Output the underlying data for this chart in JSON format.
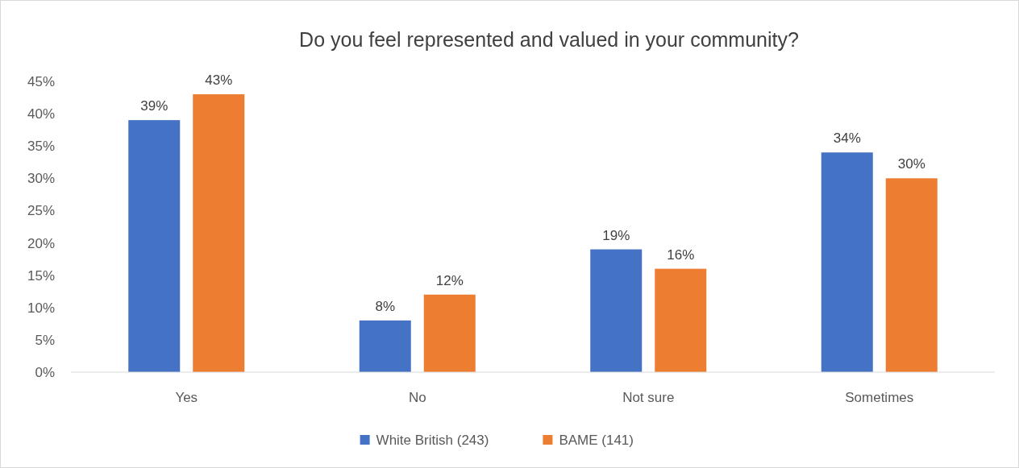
{
  "chart_data": {
    "type": "bar",
    "title": "Do you feel represented and valued in your community?",
    "categories": [
      "Yes",
      "No",
      "Not sure",
      "Sometimes"
    ],
    "series": [
      {
        "name": "White British (243)",
        "color": "#4472c4",
        "values": [
          39,
          8,
          19,
          34
        ],
        "value_labels": [
          "39%",
          "8%",
          "19%",
          "34%"
        ]
      },
      {
        "name": "BAME (141)",
        "color": "#ed7d31",
        "values": [
          43,
          12,
          16,
          30
        ],
        "value_labels": [
          "43%",
          "12%",
          "16%",
          "30%"
        ]
      }
    ],
    "ylim": [
      0,
      45
    ],
    "yticks": [
      {
        "value": 0,
        "label": "0%"
      },
      {
        "value": 5,
        "label": "5%"
      },
      {
        "value": 10,
        "label": "10%"
      },
      {
        "value": 15,
        "label": "15%"
      },
      {
        "value": 20,
        "label": "20%"
      },
      {
        "value": 25,
        "label": "25%"
      },
      {
        "value": 30,
        "label": "30%"
      },
      {
        "value": 35,
        "label": "35%"
      },
      {
        "value": 40,
        "label": "40%"
      },
      {
        "value": 45,
        "label": "45%"
      }
    ],
    "grid": false,
    "legend": "bottom"
  }
}
